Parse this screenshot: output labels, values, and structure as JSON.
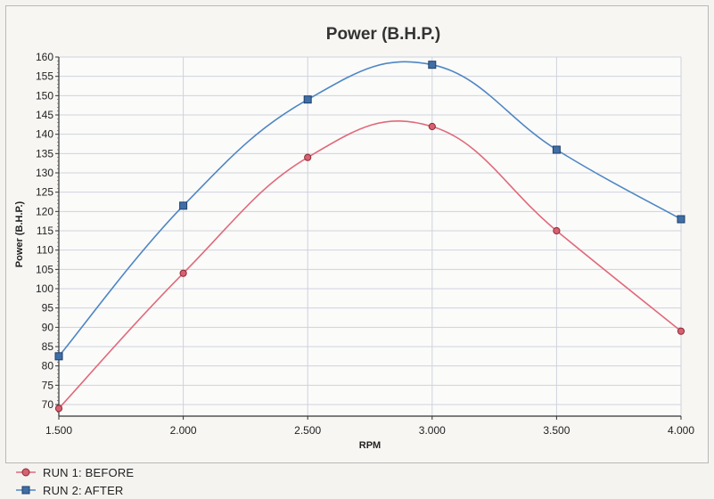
{
  "chart_data": {
    "type": "line",
    "title": "Power (B.H.P.)",
    "xlabel": "RPM",
    "ylabel": "Power (B.H.P.)",
    "x": [
      1500,
      2000,
      2500,
      3000,
      3500,
      4000
    ],
    "xticks": [
      1500,
      2000,
      2500,
      3000,
      3500,
      4000
    ],
    "xtick_labels": [
      "1.500",
      "2.000",
      "2.500",
      "3.000",
      "3.500",
      "4.000"
    ],
    "xlim": [
      1500,
      4000
    ],
    "ylim": [
      67,
      160
    ],
    "yticks": [
      70,
      75,
      80,
      85,
      90,
      95,
      100,
      105,
      110,
      115,
      120,
      125,
      130,
      135,
      140,
      145,
      150,
      155,
      160
    ],
    "grid": true,
    "legend_position": "bottom-left",
    "series": [
      {
        "name": "RUN 1: BEFORE",
        "color": "#e06a7a",
        "marker": "circle",
        "values": [
          69,
          104,
          134,
          142,
          115,
          89
        ]
      },
      {
        "name": "RUN 2: AFTER",
        "color": "#4f86c4",
        "marker": "square",
        "values": [
          82.5,
          121.5,
          149,
          158,
          136,
          118
        ]
      }
    ]
  }
}
